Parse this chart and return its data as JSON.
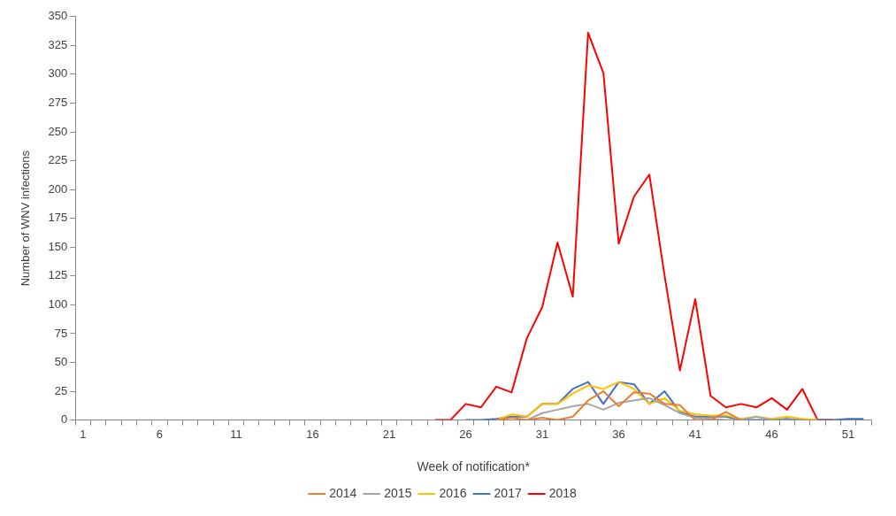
{
  "chart_data": {
    "type": "line",
    "xlabel": "Week of notification*",
    "ylabel": "Number of WNV infections",
    "categories": [
      "1",
      null,
      null,
      null,
      null,
      "6",
      null,
      null,
      null,
      null,
      "11",
      null,
      null,
      null,
      null,
      "16",
      null,
      null,
      null,
      null,
      "21",
      null,
      null,
      null,
      null,
      "26",
      null,
      null,
      null,
      null,
      "31",
      null,
      null,
      null,
      null,
      "36",
      null,
      null,
      null,
      null,
      "41",
      null,
      null,
      null,
      null,
      "46",
      null,
      null,
      null,
      null,
      "51",
      null
    ],
    "ylim": [
      0,
      350
    ],
    "yticks": [
      0,
      25,
      50,
      75,
      100,
      125,
      150,
      175,
      200,
      225,
      250,
      275,
      300,
      325,
      350
    ],
    "grid": false,
    "legend": "bottom",
    "marker": "none",
    "line_style": "solid",
    "series": [
      {
        "name": "2014",
        "color": "#ed7d31",
        "values": [
          null,
          null,
          null,
          null,
          null,
          null,
          null,
          null,
          null,
          null,
          null,
          null,
          null,
          null,
          null,
          null,
          null,
          null,
          null,
          null,
          null,
          null,
          null,
          null,
          null,
          null,
          null,
          0,
          2,
          0,
          2,
          0,
          3,
          17,
          25,
          12,
          24,
          23,
          14,
          13,
          0,
          0,
          7,
          0,
          null,
          null,
          null,
          null,
          null,
          null,
          null,
          null
        ]
      },
      {
        "name": "2015",
        "color": "#a5a5a5",
        "values": [
          null,
          null,
          null,
          null,
          null,
          null,
          null,
          null,
          null,
          null,
          null,
          null,
          null,
          null,
          null,
          null,
          null,
          null,
          null,
          null,
          null,
          null,
          null,
          null,
          null,
          null,
          null,
          null,
          null,
          0,
          6,
          9,
          12,
          14,
          9,
          15,
          17,
          19,
          13,
          6,
          2,
          1,
          0,
          0,
          3,
          0,
          0,
          0,
          null,
          null,
          null,
          null
        ]
      },
      {
        "name": "2016",
        "color": "#ffc000",
        "values": [
          null,
          null,
          null,
          null,
          null,
          null,
          null,
          null,
          null,
          null,
          null,
          null,
          null,
          null,
          null,
          null,
          null,
          null,
          null,
          null,
          null,
          null,
          null,
          null,
          null,
          null,
          null,
          0,
          5,
          3,
          14,
          14,
          23,
          30,
          27,
          33,
          27,
          14,
          19,
          8,
          5,
          4,
          4,
          1,
          3,
          1,
          3,
          1,
          0,
          null,
          null,
          null
        ]
      },
      {
        "name": "2017",
        "color": "#4472c4",
        "values": [
          null,
          null,
          null,
          null,
          null,
          null,
          null,
          null,
          null,
          null,
          null,
          null,
          null,
          null,
          null,
          null,
          null,
          null,
          null,
          null,
          null,
          null,
          null,
          null,
          null,
          0,
          0,
          1,
          3,
          3,
          14,
          14,
          27,
          33,
          14,
          33,
          31,
          14,
          25,
          7,
          3,
          3,
          3,
          0,
          0,
          0,
          1,
          0,
          0,
          0,
          1,
          1
        ]
      },
      {
        "name": "2018",
        "color": "#ff0000",
        "values": [
          null,
          null,
          null,
          null,
          null,
          null,
          null,
          null,
          null,
          null,
          null,
          null,
          null,
          null,
          null,
          null,
          null,
          null,
          null,
          null,
          null,
          null,
          null,
          0,
          0,
          14,
          11,
          29,
          24,
          71,
          98,
          154,
          107,
          336,
          301,
          153,
          194,
          213,
          125,
          43,
          105,
          21,
          11,
          14,
          11,
          19,
          9,
          27,
          0,
          0,
          null,
          null
        ]
      }
    ]
  }
}
